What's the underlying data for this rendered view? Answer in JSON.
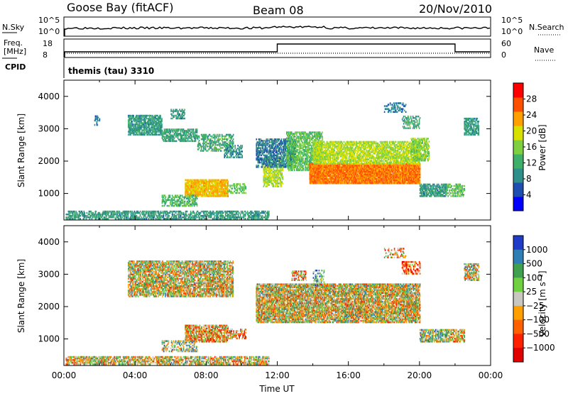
{
  "header": {
    "station": "Goose Bay (fitACF)",
    "beam": "Beam 08",
    "date": "20/Nov/2010"
  },
  "top_panels": {
    "nsky_label": "N.Sky",
    "nsky_ticks": [
      "10^5",
      "10^0"
    ],
    "nsearch_label": "N.Search",
    "nsearch_ticks": [
      "10^5",
      "10^0"
    ],
    "freq_label": "Freq.",
    "freq_unit": "[MHz]",
    "freq_ticks": [
      "18",
      "8"
    ],
    "nave_label": "Nave",
    "nave_ticks": [
      "60",
      "0"
    ],
    "cpid_label": "CPID",
    "cpid_text": "themis (tau) 3310"
  },
  "chart_data": [
    {
      "type": "heatmap",
      "name": "power-panel",
      "ylabel": "Slant Range [km]",
      "ylim": [
        180,
        4500
      ],
      "y_ticks": [
        1000,
        2000,
        3000,
        4000
      ],
      "y_tick_labels": [
        "1000",
        "2000",
        "3000",
        "4000"
      ],
      "x_range_hours": [
        0,
        24
      ],
      "colorbar": {
        "label": "Power [dB]",
        "range": [
          0,
          32
        ],
        "ticks": [
          4,
          8,
          12,
          16,
          20,
          24,
          28
        ],
        "tick_labels": [
          "4",
          "8",
          "12",
          "16",
          "20",
          "24",
          "28"
        ],
        "colors": [
          "#0000ff",
          "#1e4fb0",
          "#2f8f8a",
          "#3fb06a",
          "#7fd040",
          "#d8e000",
          "#ffa000",
          "#ff5000",
          "#ff0000"
        ]
      },
      "regions": [
        {
          "t0": 0.1,
          "t1": 11.5,
          "r0": 200,
          "r1": 450,
          "v": 10,
          "density": 0.6
        },
        {
          "t0": 1.7,
          "t1": 2.0,
          "r0": 3100,
          "r1": 3400,
          "v": 8,
          "density": 0.4
        },
        {
          "t0": 3.6,
          "t1": 5.5,
          "r0": 2800,
          "r1": 3400,
          "v": 10,
          "density": 0.7
        },
        {
          "t0": 5.5,
          "t1": 7.5,
          "r0": 2600,
          "r1": 3000,
          "v": 11,
          "density": 0.6
        },
        {
          "t0": 7.5,
          "t1": 9.5,
          "r0": 2300,
          "r1": 2800,
          "v": 12,
          "density": 0.5
        },
        {
          "t0": 9.0,
          "t1": 10.0,
          "r0": 2100,
          "r1": 2500,
          "v": 9,
          "density": 0.4
        },
        {
          "t0": 6.0,
          "t1": 6.8,
          "r0": 3300,
          "r1": 3600,
          "v": 10,
          "density": 0.5
        },
        {
          "t0": 6.8,
          "t1": 9.2,
          "r0": 900,
          "r1": 1400,
          "v": 22,
          "density": 0.85
        },
        {
          "t0": 9.2,
          "t1": 10.2,
          "r0": 1000,
          "r1": 1300,
          "v": 14,
          "density": 0.5
        },
        {
          "t0": 5.5,
          "t1": 7.5,
          "r0": 600,
          "r1": 950,
          "v": 13,
          "density": 0.5
        },
        {
          "t0": 11.2,
          "t1": 12.3,
          "r0": 1200,
          "r1": 2100,
          "v": 18,
          "density": 0.6
        },
        {
          "t0": 10.8,
          "t1": 13.0,
          "r0": 1800,
          "r1": 2700,
          "v": 8,
          "density": 0.6
        },
        {
          "t0": 12.5,
          "t1": 14.5,
          "r0": 1700,
          "r1": 2900,
          "v": 14,
          "density": 0.6
        },
        {
          "t0": 13.8,
          "t1": 20.0,
          "r0": 1300,
          "r1": 1900,
          "v": 25,
          "density": 0.9
        },
        {
          "t0": 14.0,
          "t1": 20.0,
          "r0": 1900,
          "r1": 2600,
          "v": 18,
          "density": 0.7
        },
        {
          "t0": 19.5,
          "t1": 20.5,
          "r0": 2000,
          "r1": 2700,
          "v": 16,
          "density": 0.6
        },
        {
          "t0": 20.0,
          "t1": 21.5,
          "r0": 900,
          "r1": 1300,
          "v": 10,
          "density": 0.7
        },
        {
          "t0": 22.5,
          "t1": 23.3,
          "r0": 2800,
          "r1": 3300,
          "v": 10,
          "density": 0.7
        },
        {
          "t0": 21.5,
          "t1": 22.5,
          "r0": 900,
          "r1": 1300,
          "v": 14,
          "density": 0.5
        },
        {
          "t0": 19.0,
          "t1": 20.0,
          "r0": 3000,
          "r1": 3400,
          "v": 12,
          "density": 0.4
        },
        {
          "t0": 18.0,
          "t1": 19.2,
          "r0": 3500,
          "r1": 3800,
          "v": 8,
          "density": 0.3
        }
      ]
    },
    {
      "type": "heatmap",
      "name": "velocity-panel",
      "ylabel": "Slant Range [km]",
      "ylim": [
        180,
        4500
      ],
      "y_ticks": [
        1000,
        2000,
        3000,
        4000
      ],
      "y_tick_labels": [
        "1000",
        "2000",
        "3000",
        "4000"
      ],
      "xlabel": "Time UT",
      "x_ticks": [
        0,
        4,
        8,
        12,
        16,
        20,
        24
      ],
      "x_tick_labels": [
        "00:00",
        "04:00",
        "08:00",
        "12:00",
        "16:00",
        "20:00",
        "00:00"
      ],
      "colorbar": {
        "label": "Velocity [m s⁻¹]",
        "tick_labels": [
          "1000",
          "500",
          "100",
          "25",
          "−25",
          "−100",
          "−500",
          "−1000"
        ],
        "colors": [
          "#1e3cc8",
          "#2f7fb5",
          "#3fa050",
          "#6fd040",
          "#c8c8c0",
          "#ffa000",
          "#ff6000",
          "#ff2000",
          "#e00000"
        ]
      },
      "regions": [
        {
          "t0": 0.1,
          "t1": 11.5,
          "r0": 200,
          "r1": 450,
          "v": 4,
          "density": 0.6
        },
        {
          "t0": 3.6,
          "t1": 9.5,
          "r0": 2300,
          "r1": 3400,
          "v": 4,
          "density": 0.7
        },
        {
          "t0": 10.8,
          "t1": 20.0,
          "r0": 1500,
          "r1": 2700,
          "v": 4,
          "density": 0.75
        },
        {
          "t0": 22.5,
          "t1": 23.3,
          "r0": 2800,
          "r1": 3300,
          "v": 4,
          "density": 0.6
        },
        {
          "t0": 6.8,
          "t1": 9.2,
          "r0": 900,
          "r1": 1400,
          "v": 5,
          "density": 0.7
        },
        {
          "t0": 9.2,
          "t1": 10.2,
          "r0": 1000,
          "r1": 1300,
          "v": 5,
          "density": 0.5
        },
        {
          "t0": 5.5,
          "t1": 7.5,
          "r0": 600,
          "r1": 950,
          "v": 3,
          "density": 0.4
        },
        {
          "t0": 20.0,
          "t1": 21.5,
          "r0": 900,
          "r1": 1300,
          "v": 3,
          "density": 0.7
        },
        {
          "t0": 21.5,
          "t1": 22.5,
          "r0": 900,
          "r1": 1300,
          "v": 4,
          "density": 0.5
        },
        {
          "t0": 19.0,
          "t1": 20.0,
          "r0": 3000,
          "r1": 3400,
          "v": 6,
          "density": 0.4
        },
        {
          "t0": 12.8,
          "t1": 13.6,
          "r0": 2800,
          "r1": 3100,
          "v": 5,
          "density": 0.4
        },
        {
          "t0": 14.0,
          "t1": 14.6,
          "r0": 2600,
          "r1": 3100,
          "v": 2,
          "density": 0.3
        },
        {
          "t0": 18.0,
          "t1": 19.2,
          "r0": 3500,
          "r1": 3800,
          "v": 5,
          "density": 0.3
        }
      ]
    }
  ]
}
